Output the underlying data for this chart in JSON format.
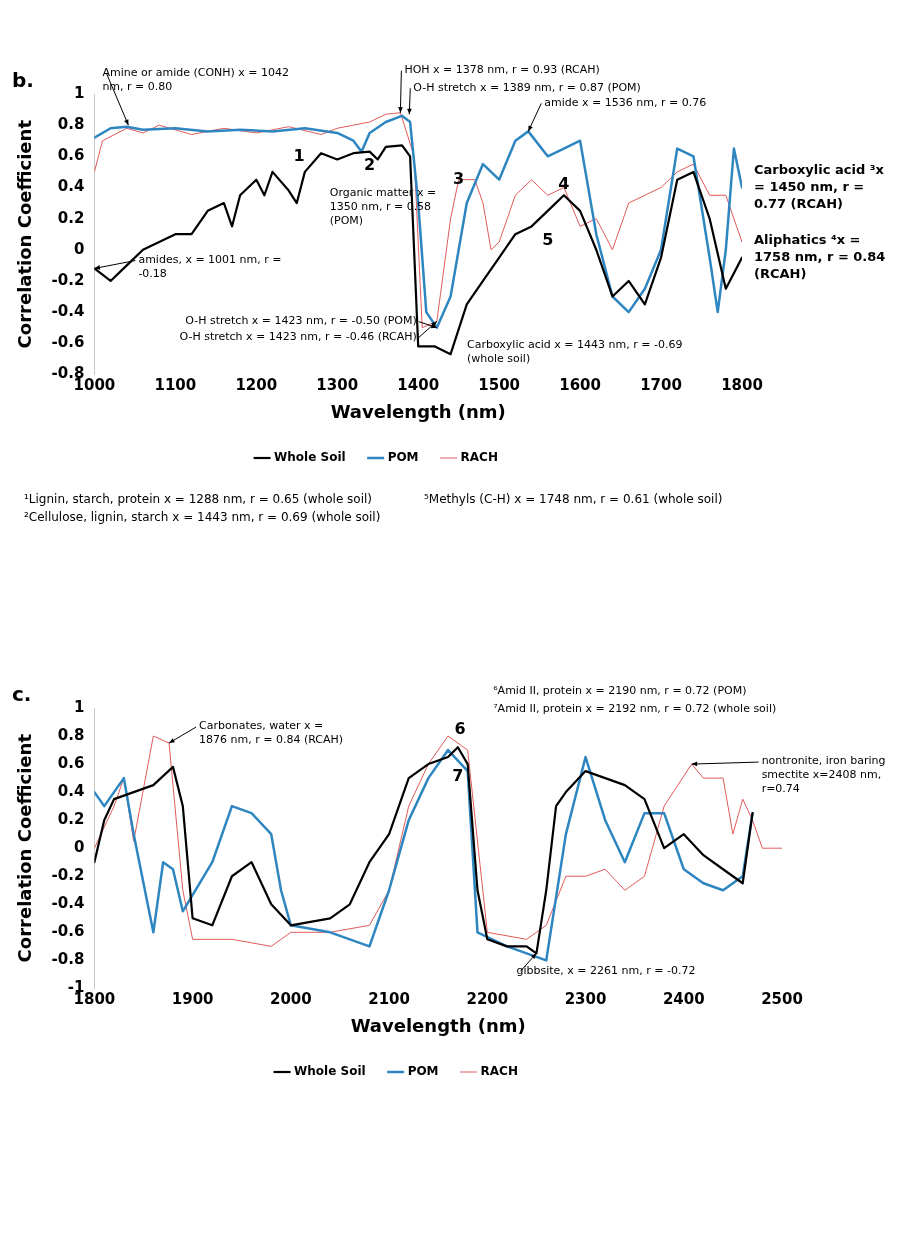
{
  "chart_data": [
    {
      "type": "line",
      "title": "b.",
      "xlabel": "Wavelength (nm)",
      "ylabel": "Correlation Coefficient",
      "xlim": [
        1000,
        1800
      ],
      "xticks": [
        1000,
        1100,
        1200,
        1300,
        1400,
        1500,
        1600,
        1700,
        1800
      ],
      "ylim": [
        -0.8,
        1
      ],
      "yticks": [
        -0.8,
        -0.6,
        -0.4,
        -0.2,
        0,
        0.2,
        0.4,
        0.6,
        0.8,
        1
      ],
      "grid": false,
      "legend": "bottom",
      "marker": "none",
      "line_style": "solid",
      "series": [
        {
          "name": "Whole Soil",
          "color": "#000000",
          "x": [
            1000,
            1020,
            1040,
            1060,
            1080,
            1100,
            1120,
            1140,
            1160,
            1170,
            1180,
            1200,
            1210,
            1220,
            1240,
            1250,
            1260,
            1280,
            1300,
            1320,
            1340,
            1350,
            1360,
            1380,
            1390,
            1400,
            1420,
            1440,
            1460,
            1480,
            1500,
            1520,
            1540,
            1560,
            1580,
            1600,
            1620,
            1640,
            1660,
            1680,
            1700,
            1720,
            1740,
            1760,
            1780,
            1800
          ],
          "values": [
            -0.12,
            -0.2,
            -0.1,
            0.0,
            0.05,
            0.1,
            0.1,
            0.25,
            0.3,
            0.15,
            0.35,
            0.45,
            0.35,
            0.5,
            0.38,
            0.3,
            0.5,
            0.62,
            0.58,
            0.62,
            0.63,
            0.58,
            0.66,
            0.67,
            0.6,
            -0.62,
            -0.62,
            -0.67,
            -0.35,
            -0.2,
            -0.05,
            0.1,
            0.15,
            0.25,
            0.35,
            0.25,
            0.0,
            -0.3,
            -0.2,
            -0.35,
            -0.05,
            0.45,
            0.5,
            0.2,
            -0.25,
            -0.05
          ]
        },
        {
          "name": "POM",
          "color": "#2e86c1",
          "x": [
            1000,
            1020,
            1040,
            1060,
            1100,
            1140,
            1180,
            1220,
            1260,
            1300,
            1320,
            1330,
            1340,
            1360,
            1380,
            1390,
            1400,
            1410,
            1423,
            1440,
            1460,
            1480,
            1500,
            1520,
            1536,
            1560,
            1580,
            1600,
            1620,
            1640,
            1660,
            1680,
            1700,
            1720,
            1740,
            1760,
            1770,
            1780,
            1790,
            1800
          ],
          "values": [
            0.72,
            0.78,
            0.79,
            0.77,
            0.78,
            0.76,
            0.77,
            0.76,
            0.78,
            0.75,
            0.7,
            0.63,
            0.75,
            0.82,
            0.86,
            0.82,
            0.3,
            -0.4,
            -0.5,
            -0.3,
            0.3,
            0.55,
            0.45,
            0.7,
            0.76,
            0.6,
            0.65,
            0.7,
            0.1,
            -0.3,
            -0.4,
            -0.25,
            0.0,
            0.65,
            0.6,
            -0.05,
            -0.4,
            0.0,
            0.65,
            0.4
          ]
        },
        {
          "name": "RACH",
          "color": "#e05a5a",
          "x": [
            1000,
            1010,
            1040,
            1060,
            1080,
            1120,
            1160,
            1200,
            1240,
            1280,
            1300,
            1340,
            1360,
            1378,
            1395,
            1405,
            1423,
            1440,
            1450,
            1470,
            1480,
            1490,
            1500,
            1520,
            1540,
            1560,
            1580,
            1600,
            1620,
            1640,
            1660,
            1680,
            1700,
            1720,
            1740,
            1760,
            1780,
            1800
          ],
          "values": [
            0.5,
            0.7,
            0.78,
            0.75,
            0.8,
            0.74,
            0.78,
            0.75,
            0.79,
            0.74,
            0.78,
            0.82,
            0.87,
            0.88,
            0.6,
            -0.5,
            -0.46,
            0.2,
            0.45,
            0.45,
            0.3,
            0.0,
            0.05,
            0.35,
            0.45,
            0.35,
            0.4,
            0.15,
            0.2,
            0.0,
            0.3,
            0.35,
            0.4,
            0.5,
            0.55,
            0.35,
            0.35,
            0.05
          ]
        }
      ],
      "annotations": [
        {
          "text": "Amine or amide (CONH) x = 1042 nm, r = 0.80",
          "x": 1042,
          "y": 0.8
        },
        {
          "text": "HOH x = 1378 nm, r = 0.93 (RCAH)",
          "x": 1378,
          "y": 0.88
        },
        {
          "text": "O-H stretch x = 1389 nm, r = 0.87 (POM)",
          "x": 1389,
          "y": 0.87
        },
        {
          "text": "amide x = 1536 nm, r = 0.76",
          "x": 1536,
          "y": 0.76
        },
        {
          "text": "Organic matter x = 1350 nm, r = 0.58 (POM)",
          "x": 1350,
          "y": 0.58
        },
        {
          "text": "amides, x = 1001 nm, r = -0.18",
          "x": 1000,
          "y": -0.12
        },
        {
          "text": "O-H stretch x = 1423 nm, r = -0.50 (POM)",
          "x": 1423,
          "y": -0.5
        },
        {
          "text": "O-H stretch x = 1423 nm, r = -0.46 (RCAH)",
          "x": 1423,
          "y": -0.46
        },
        {
          "text": "Carboxylic acid x = 1443 nm, r = -0.69 (whole soil)",
          "x": 1443,
          "y": -0.69
        },
        {
          "text": "1",
          "x": 1280,
          "y": 0.62
        },
        {
          "text": "2",
          "x": 1340,
          "y": 0.63
        },
        {
          "text": "3",
          "x": 1450,
          "y": 0.45
        },
        {
          "text": "4",
          "x": 1580,
          "y": 0.42
        },
        {
          "text": "5",
          "x": 1560,
          "y": 0.25
        },
        "Carboxylic acid ³x = 1450 nm, r = 0.77 (RCAH)",
        "Aliphatics ⁴x = 1758 nm, r = 0.84 (RCAH)",
        "¹Lignin, starch, protein x = 1288 nm, r = 0.65 (whole soil)",
        "²Cellulose, lignin, starch x = 1443 nm, r = 0.69 (whole soil)",
        "⁵Methyls (C-H) x = 1748 nm, r = 0.61 (whole soil)"
      ]
    },
    {
      "type": "line",
      "title": "c.",
      "xlabel": "Wavelength (nm)",
      "ylabel": "Correlation Coefficient",
      "xlim": [
        1800,
        2500
      ],
      "xticks": [
        1800,
        1900,
        2000,
        2100,
        2200,
        2300,
        2400,
        2500
      ],
      "ylim": [
        -1,
        1
      ],
      "yticks": [
        -1,
        -0.8,
        -0.6,
        -0.4,
        -0.2,
        0,
        0.2,
        0.4,
        0.6,
        0.8,
        1
      ],
      "grid": false,
      "legend": "bottom",
      "marker": "none",
      "line_style": "solid",
      "series": [
        {
          "name": "Whole Soil",
          "color": "#000000",
          "x": [
            1800,
            1810,
            1820,
            1840,
            1860,
            1880,
            1890,
            1900,
            1920,
            1940,
            1960,
            1980,
            2000,
            2040,
            2060,
            2080,
            2100,
            2120,
            2140,
            2160,
            2170,
            2180,
            2190,
            2200,
            2220,
            2240,
            2250,
            2260,
            2270,
            2280,
            2300,
            2320,
            2340,
            2360,
            2380,
            2400,
            2420,
            2440,
            2460,
            2470
          ],
          "values": [
            -0.1,
            0.2,
            0.35,
            0.4,
            0.45,
            0.58,
            0.3,
            -0.5,
            -0.55,
            -0.2,
            -0.1,
            -0.4,
            -0.55,
            -0.5,
            -0.4,
            -0.1,
            0.1,
            0.5,
            0.6,
            0.65,
            0.72,
            0.6,
            -0.3,
            -0.65,
            -0.7,
            -0.7,
            -0.75,
            -0.3,
            0.3,
            0.4,
            0.55,
            0.5,
            0.45,
            0.35,
            0.0,
            0.1,
            -0.05,
            -0.15,
            -0.25,
            0.25
          ]
        },
        {
          "name": "POM",
          "color": "#2e86c1",
          "x": [
            1800,
            1810,
            1830,
            1840,
            1860,
            1870,
            1880,
            1890,
            1920,
            1940,
            1960,
            1980,
            1990,
            2000,
            2040,
            2080,
            2100,
            2120,
            2140,
            2160,
            2180,
            2190,
            2220,
            2260,
            2280,
            2300,
            2320,
            2340,
            2360,
            2380,
            2400,
            2420,
            2440,
            2460,
            2470
          ],
          "values": [
            0.4,
            0.3,
            0.5,
            0.1,
            -0.6,
            -0.1,
            -0.15,
            -0.45,
            -0.1,
            0.3,
            0.25,
            0.1,
            -0.3,
            -0.55,
            -0.6,
            -0.7,
            -0.3,
            0.2,
            0.5,
            0.7,
            0.55,
            -0.6,
            -0.7,
            -0.8,
            0.1,
            0.65,
            0.2,
            -0.1,
            0.25,
            0.25,
            -0.15,
            -0.25,
            -0.3,
            -0.2,
            0.25
          ]
        },
        {
          "name": "RACH",
          "color": "#e05a5a",
          "x": [
            1800,
            1820,
            1830,
            1840,
            1860,
            1876,
            1890,
            1900,
            1940,
            1980,
            2000,
            2040,
            2080,
            2100,
            2120,
            2140,
            2160,
            2180,
            2200,
            2240,
            2260,
            2280,
            2300,
            2320,
            2340,
            2360,
            2380,
            2408,
            2420,
            2440,
            2450,
            2460,
            2470,
            2480,
            2500
          ],
          "values": [
            0.0,
            0.3,
            0.5,
            0.05,
            0.8,
            0.75,
            -0.3,
            -0.65,
            -0.65,
            -0.7,
            -0.6,
            -0.6,
            -0.55,
            -0.3,
            0.3,
            0.6,
            0.8,
            0.7,
            -0.6,
            -0.65,
            -0.55,
            -0.2,
            -0.2,
            -0.15,
            -0.3,
            -0.2,
            0.3,
            0.6,
            0.5,
            0.5,
            0.1,
            0.35,
            0.2,
            0.0,
            0.0
          ]
        }
      ],
      "annotations": [
        {
          "text": "Carbonates, water x = 1876 nm, r = 0.84 (RCAH)",
          "x": 1876,
          "y": 0.75
        },
        "⁶Amid II, protein x = 2190 nm, r = 0.72 (POM)",
        "⁷Amid II, protein x = 2192 nm, r = 0.72 (whole soil)",
        {
          "text": "nontronite, iron baring smectite x=2408 nm, r=0.74",
          "x": 2408,
          "y": 0.6
        },
        {
          "text": "gibbsite, x = 2261 nm, r = -0.72",
          "x": 2250,
          "y": -0.75
        },
        {
          "text": "6",
          "x": 2160,
          "y": 0.8
        },
        {
          "text": "7",
          "x": 2170,
          "y": 0.72
        }
      ]
    }
  ]
}
